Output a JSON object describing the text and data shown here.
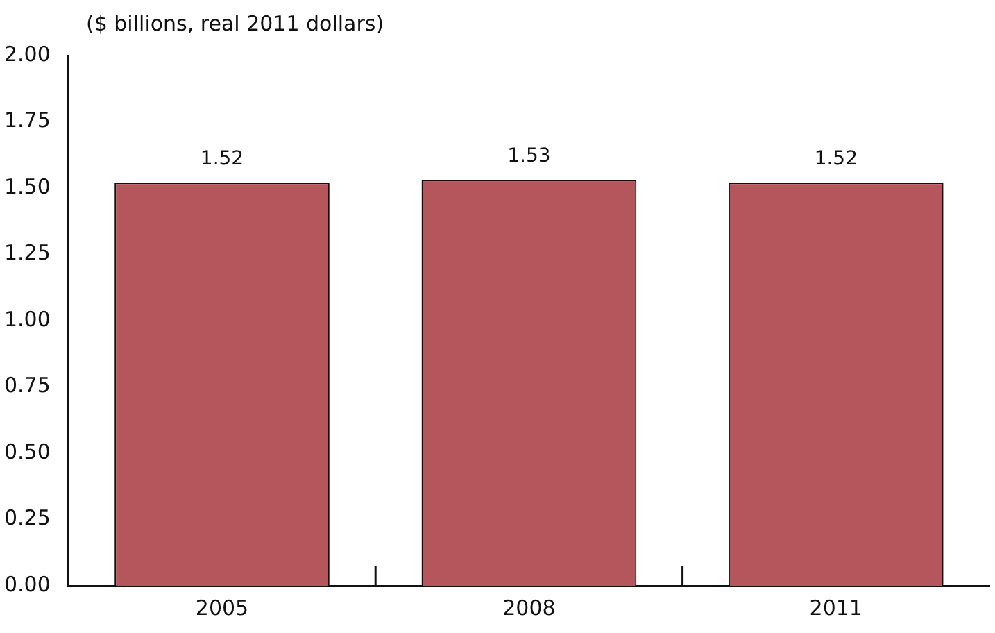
{
  "chart_data": {
    "type": "bar",
    "ylabel": "($ billions, real 2011 dollars)",
    "categories": [
      "2005",
      "2008",
      "2011"
    ],
    "values": [
      1.52,
      1.53,
      1.52
    ],
    "color": "#b5565c",
    "ylim": [
      0,
      2
    ],
    "yticks": [
      {
        "value": 0,
        "label": "0.00"
      },
      {
        "value": 0.25,
        "label": "0.25"
      },
      {
        "value": 0.5,
        "label": "0.50"
      },
      {
        "value": 0.75,
        "label": "0.75"
      },
      {
        "value": 1,
        "label": "1.00"
      },
      {
        "value": 1.25,
        "label": "1.25"
      },
      {
        "value": 1.5,
        "label": "1.50"
      },
      {
        "value": 1.75,
        "label": "1.75"
      },
      {
        "value": 2,
        "label": "2.00"
      }
    ],
    "data_labels": true,
    "grid": false,
    "legend": false
  }
}
